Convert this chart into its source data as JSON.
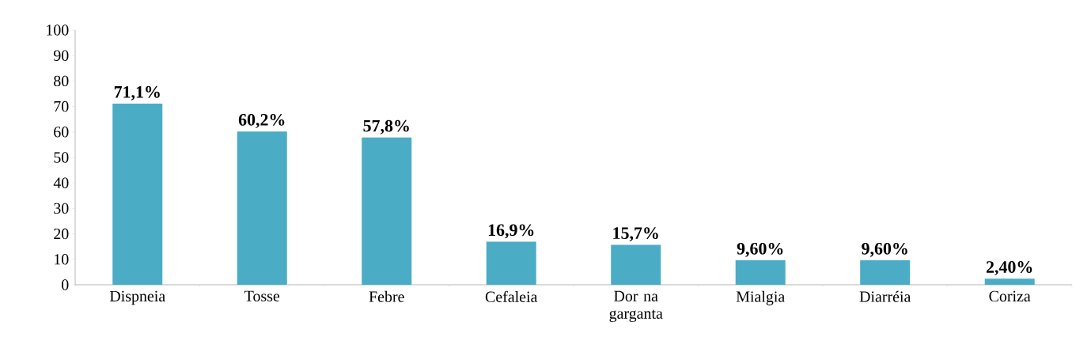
{
  "chart_data": {
    "type": "bar",
    "categories": [
      "Dispneia",
      "Tosse",
      "Febre",
      "Cefaleia",
      "Dor na garganta",
      "Mialgia",
      "Diarréia",
      "Coriza"
    ],
    "values": [
      71.1,
      60.2,
      57.8,
      16.9,
      15.7,
      9.6,
      9.6,
      2.4
    ],
    "value_labels": [
      "71,1%",
      "60,2%",
      "57,8%",
      "16,9%",
      "15,7%",
      "9,60%",
      "9,60%",
      "2,40%"
    ],
    "color": "#4bacc6",
    "ylim": [
      0,
      100
    ],
    "yticks": [
      0,
      10,
      20,
      30,
      40,
      50,
      60,
      70,
      80,
      90,
      100
    ]
  }
}
